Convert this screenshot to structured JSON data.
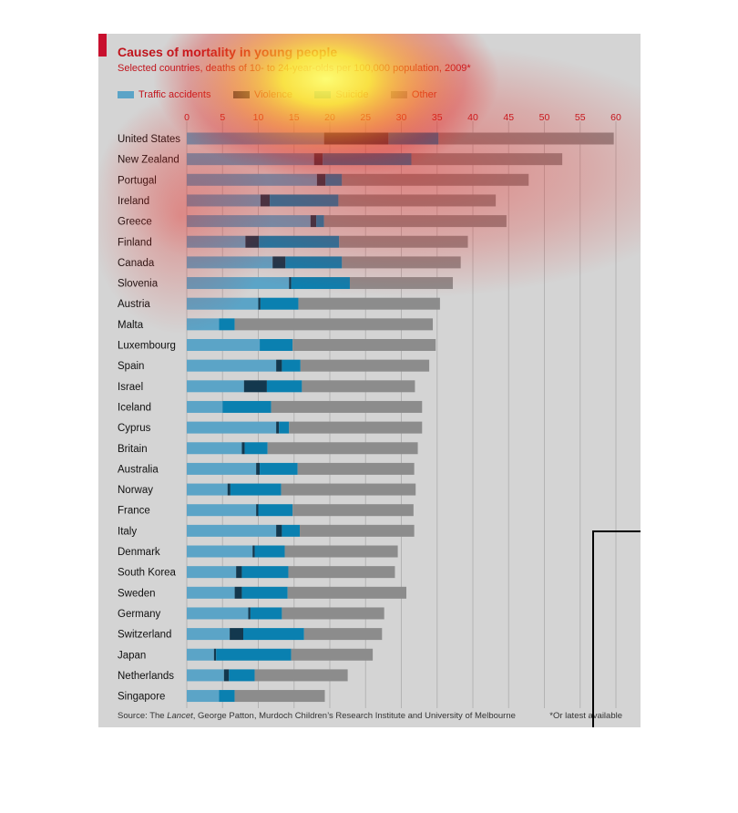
{
  "header": {
    "title": "Causes of mortality in young people",
    "subtitle": "Selected countries, deaths of 10- to 24-year-olds per 100,000 population, 2009*",
    "source_prefix": "Source: The ",
    "source_italic": "Lancet",
    "source_rest": ", George Patton, Murdoch Children’s Research Institute and University of Melbourne",
    "footnote": "*Or latest available"
  },
  "legend": [
    {
      "label": "Traffic accidents",
      "color": "#5ba4c7"
    },
    {
      "label": "Violence",
      "color": "#13384e"
    },
    {
      "label": "Suicide",
      "color": "#0a80b0"
    },
    {
      "label": "Other",
      "color": "#8c8c8c"
    }
  ],
  "chart_data": {
    "type": "bar",
    "orientation": "horizontal",
    "stacked": true,
    "title": "Causes of mortality in young people",
    "subtitle": "Selected countries, deaths of 10- to 24-year-olds per 100,000 population, 2009*",
    "xlim": [
      0,
      60
    ],
    "x_ticks": [
      0,
      5,
      10,
      15,
      20,
      25,
      30,
      35,
      40,
      45,
      50,
      55,
      60
    ],
    "grid": true,
    "legend_position": "top-left",
    "categories": [
      "United States",
      "New Zealand",
      "Portugal",
      "Ireland",
      "Greece",
      "Finland",
      "Canada",
      "Slovenia",
      "Austria",
      "Malta",
      "Luxembourg",
      "Spain",
      "Israel",
      "Iceland",
      "Cyprus",
      "Britain",
      "Australia",
      "Norway",
      "France",
      "Italy",
      "Denmark",
      "South Korea",
      "Sweden",
      "Germany",
      "Switzerland",
      "Japan",
      "Netherlands",
      "Singapore"
    ],
    "series": [
      {
        "name": "Traffic accidents",
        "color": "#5ba4c7",
        "values": [
          19.2,
          17.8,
          18.2,
          10.3,
          17.3,
          8.2,
          12.0,
          14.3,
          10.0,
          4.5,
          10.2,
          12.5,
          8.0,
          5.0,
          12.5,
          7.7,
          9.7,
          5.7,
          9.7,
          12.5,
          9.2,
          6.9,
          6.7,
          8.6,
          6.0,
          3.8,
          5.2,
          4.5
        ]
      },
      {
        "name": "Violence",
        "color": "#13384e",
        "values": [
          9.0,
          1.2,
          1.2,
          1.3,
          0.8,
          1.9,
          1.8,
          0.3,
          0.3,
          0.0,
          0.0,
          0.8,
          3.2,
          0.0,
          0.4,
          0.4,
          0.5,
          0.4,
          0.3,
          0.8,
          0.3,
          0.8,
          1.0,
          0.3,
          1.9,
          0.3,
          0.7,
          0.0
        ]
      },
      {
        "name": "Suicide",
        "color": "#0a80b0",
        "values": [
          7.0,
          12.4,
          2.3,
          9.6,
          1.1,
          11.2,
          7.9,
          8.2,
          5.3,
          2.2,
          4.6,
          2.6,
          4.9,
          6.8,
          1.4,
          3.2,
          5.3,
          7.1,
          4.8,
          2.5,
          4.2,
          6.5,
          6.4,
          4.4,
          8.5,
          10.5,
          3.6,
          2.2
        ]
      },
      {
        "name": "Other",
        "color": "#8c8c8c",
        "values": [
          24.5,
          21.1,
          26.1,
          22.0,
          25.5,
          18.0,
          16.6,
          14.4,
          19.8,
          27.7,
          20.0,
          18.0,
          15.8,
          21.1,
          18.6,
          21.0,
          16.3,
          18.8,
          16.9,
          16.0,
          15.8,
          14.9,
          16.6,
          14.3,
          10.9,
          11.4,
          13.0,
          12.6
        ]
      }
    ]
  }
}
